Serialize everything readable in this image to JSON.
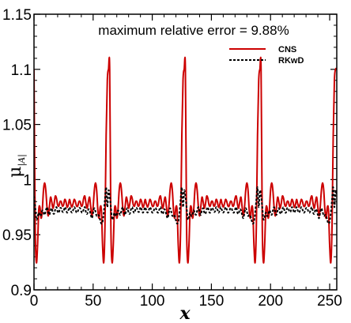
{
  "chart_data": {
    "type": "line",
    "annotation": "maximum relative error = 9.88%",
    "xlabel": "x",
    "ylabel_main": "μ",
    "ylabel_subscript": "|A|",
    "xlim": [
      0,
      256
    ],
    "ylim": [
      0.9,
      1.15
    ],
    "xticks": [
      0,
      50,
      100,
      150,
      200,
      250
    ],
    "xtick_labels": [
      "0",
      "50",
      "100",
      "150",
      "200",
      "250"
    ],
    "yticks": [
      0.9,
      0.95,
      1.0,
      1.05,
      1.1,
      1.15
    ],
    "ytick_labels": [
      "0.9",
      "0.95",
      "1",
      "1.05",
      "1.1",
      "1.15"
    ],
    "legend_position": "top-right",
    "series": [
      {
        "name": "CNS",
        "color": "#cc0000",
        "style": "solid",
        "period": 64,
        "points": [
          {
            "x": 0,
            "y": 1.1
          },
          {
            "x": 1,
            "y": 0.958
          },
          {
            "x": 2,
            "y": 0.925
          },
          {
            "x": 3,
            "y": 0.94
          },
          {
            "x": 4,
            "y": 0.972
          },
          {
            "x": 5,
            "y": 0.975
          },
          {
            "x": 6,
            "y": 0.965
          },
          {
            "x": 7,
            "y": 0.972
          },
          {
            "x": 8,
            "y": 0.99
          },
          {
            "x": 9,
            "y": 0.997
          },
          {
            "x": 10,
            "y": 0.99
          },
          {
            "x": 11,
            "y": 0.975
          },
          {
            "x": 12,
            "y": 0.967
          },
          {
            "x": 13,
            "y": 0.975
          },
          {
            "x": 14,
            "y": 0.984
          },
          {
            "x": 15,
            "y": 0.98
          },
          {
            "x": 16,
            "y": 0.974
          },
          {
            "x": 17,
            "y": 0.978
          },
          {
            "x": 18,
            "y": 0.985
          },
          {
            "x": 19,
            "y": 0.983
          },
          {
            "x": 20,
            "y": 0.977
          },
          {
            "x": 21,
            "y": 0.976
          },
          {
            "x": 22,
            "y": 0.98
          },
          {
            "x": 23,
            "y": 0.98
          },
          {
            "x": 24,
            "y": 0.976
          },
          {
            "x": 25,
            "y": 0.977
          },
          {
            "x": 26,
            "y": 0.982
          },
          {
            "x": 27,
            "y": 0.98
          },
          {
            "x": 28,
            "y": 0.975
          },
          {
            "x": 29,
            "y": 0.977
          },
          {
            "x": 30,
            "y": 0.982
          },
          {
            "x": 31,
            "y": 0.978
          },
          {
            "x": 32,
            "y": 0.975
          },
          {
            "x": 33,
            "y": 0.978
          },
          {
            "x": 34,
            "y": 0.982
          },
          {
            "x": 35,
            "y": 0.98
          },
          {
            "x": 36,
            "y": 0.976
          },
          {
            "x": 37,
            "y": 0.976
          },
          {
            "x": 38,
            "y": 0.98
          },
          {
            "x": 39,
            "y": 0.98
          },
          {
            "x": 40,
            "y": 0.976
          },
          {
            "x": 41,
            "y": 0.977
          },
          {
            "x": 42,
            "y": 0.983
          },
          {
            "x": 43,
            "y": 0.985
          },
          {
            "x": 44,
            "y": 0.978
          },
          {
            "x": 45,
            "y": 0.974
          },
          {
            "x": 46,
            "y": 0.98
          },
          {
            "x": 47,
            "y": 0.984
          },
          {
            "x": 48,
            "y": 0.975
          },
          {
            "x": 49,
            "y": 0.967
          },
          {
            "x": 50,
            "y": 0.975
          },
          {
            "x": 51,
            "y": 0.99
          },
          {
            "x": 52,
            "y": 0.997
          },
          {
            "x": 53,
            "y": 0.99
          },
          {
            "x": 54,
            "y": 0.972
          },
          {
            "x": 55,
            "y": 0.965
          },
          {
            "x": 56,
            "y": 0.975
          },
          {
            "x": 57,
            "y": 0.972
          },
          {
            "x": 58,
            "y": 0.94
          },
          {
            "x": 59,
            "y": 0.925
          },
          {
            "x": 60,
            "y": 0.958
          },
          {
            "x": 61,
            "y": 1.04
          },
          {
            "x": 62,
            "y": 1.09
          },
          {
            "x": 63,
            "y": 1.1
          }
        ]
      },
      {
        "name": "RKwD",
        "color": "#000000",
        "style": "dotted",
        "period": 64,
        "points": [
          {
            "x": 0,
            "y": 0.985
          },
          {
            "x": 1,
            "y": 0.975
          },
          {
            "x": 2,
            "y": 0.964
          },
          {
            "x": 3,
            "y": 0.966
          },
          {
            "x": 4,
            "y": 0.97
          },
          {
            "x": 5,
            "y": 0.967
          },
          {
            "x": 6,
            "y": 0.968
          },
          {
            "x": 7,
            "y": 0.972
          },
          {
            "x": 8,
            "y": 0.97
          },
          {
            "x": 9,
            "y": 0.968
          },
          {
            "x": 10,
            "y": 0.972
          },
          {
            "x": 11,
            "y": 0.975
          },
          {
            "x": 12,
            "y": 0.971
          },
          {
            "x": 13,
            "y": 0.968
          },
          {
            "x": 14,
            "y": 0.972
          },
          {
            "x": 15,
            "y": 0.974
          },
          {
            "x": 16,
            "y": 0.97
          },
          {
            "x": 17,
            "y": 0.969
          },
          {
            "x": 18,
            "y": 0.973
          },
          {
            "x": 19,
            "y": 0.975
          },
          {
            "x": 20,
            "y": 0.971
          },
          {
            "x": 21,
            "y": 0.97
          },
          {
            "x": 22,
            "y": 0.974
          },
          {
            "x": 23,
            "y": 0.974
          },
          {
            "x": 24,
            "y": 0.971
          },
          {
            "x": 25,
            "y": 0.971
          },
          {
            "x": 26,
            "y": 0.975
          },
          {
            "x": 27,
            "y": 0.973
          },
          {
            "x": 28,
            "y": 0.97
          },
          {
            "x": 29,
            "y": 0.972
          },
          {
            "x": 30,
            "y": 0.975
          },
          {
            "x": 31,
            "y": 0.972
          },
          {
            "x": 32,
            "y": 0.97
          },
          {
            "x": 33,
            "y": 0.972
          },
          {
            "x": 34,
            "y": 0.975
          },
          {
            "x": 35,
            "y": 0.973
          },
          {
            "x": 36,
            "y": 0.97
          },
          {
            "x": 37,
            "y": 0.971
          },
          {
            "x": 38,
            "y": 0.974
          },
          {
            "x": 39,
            "y": 0.974
          },
          {
            "x": 40,
            "y": 0.971
          },
          {
            "x": 41,
            "y": 0.97
          },
          {
            "x": 42,
            "y": 0.973
          },
          {
            "x": 43,
            "y": 0.975
          },
          {
            "x": 44,
            "y": 0.97
          },
          {
            "x": 45,
            "y": 0.969
          },
          {
            "x": 46,
            "y": 0.973
          },
          {
            "x": 47,
            "y": 0.972
          },
          {
            "x": 48,
            "y": 0.968
          },
          {
            "x": 49,
            "y": 0.965
          },
          {
            "x": 50,
            "y": 0.97
          },
          {
            "x": 51,
            "y": 0.974
          },
          {
            "x": 52,
            "y": 0.971
          },
          {
            "x": 53,
            "y": 0.967
          },
          {
            "x": 54,
            "y": 0.968
          },
          {
            "x": 55,
            "y": 0.967
          },
          {
            "x": 56,
            "y": 0.963
          },
          {
            "x": 57,
            "y": 0.96
          },
          {
            "x": 58,
            "y": 0.962
          },
          {
            "x": 59,
            "y": 0.97
          },
          {
            "x": 60,
            "y": 0.982
          },
          {
            "x": 61,
            "y": 0.993
          },
          {
            "x": 62,
            "y": 0.975
          },
          {
            "x": 63,
            "y": 0.99
          }
        ]
      }
    ]
  }
}
